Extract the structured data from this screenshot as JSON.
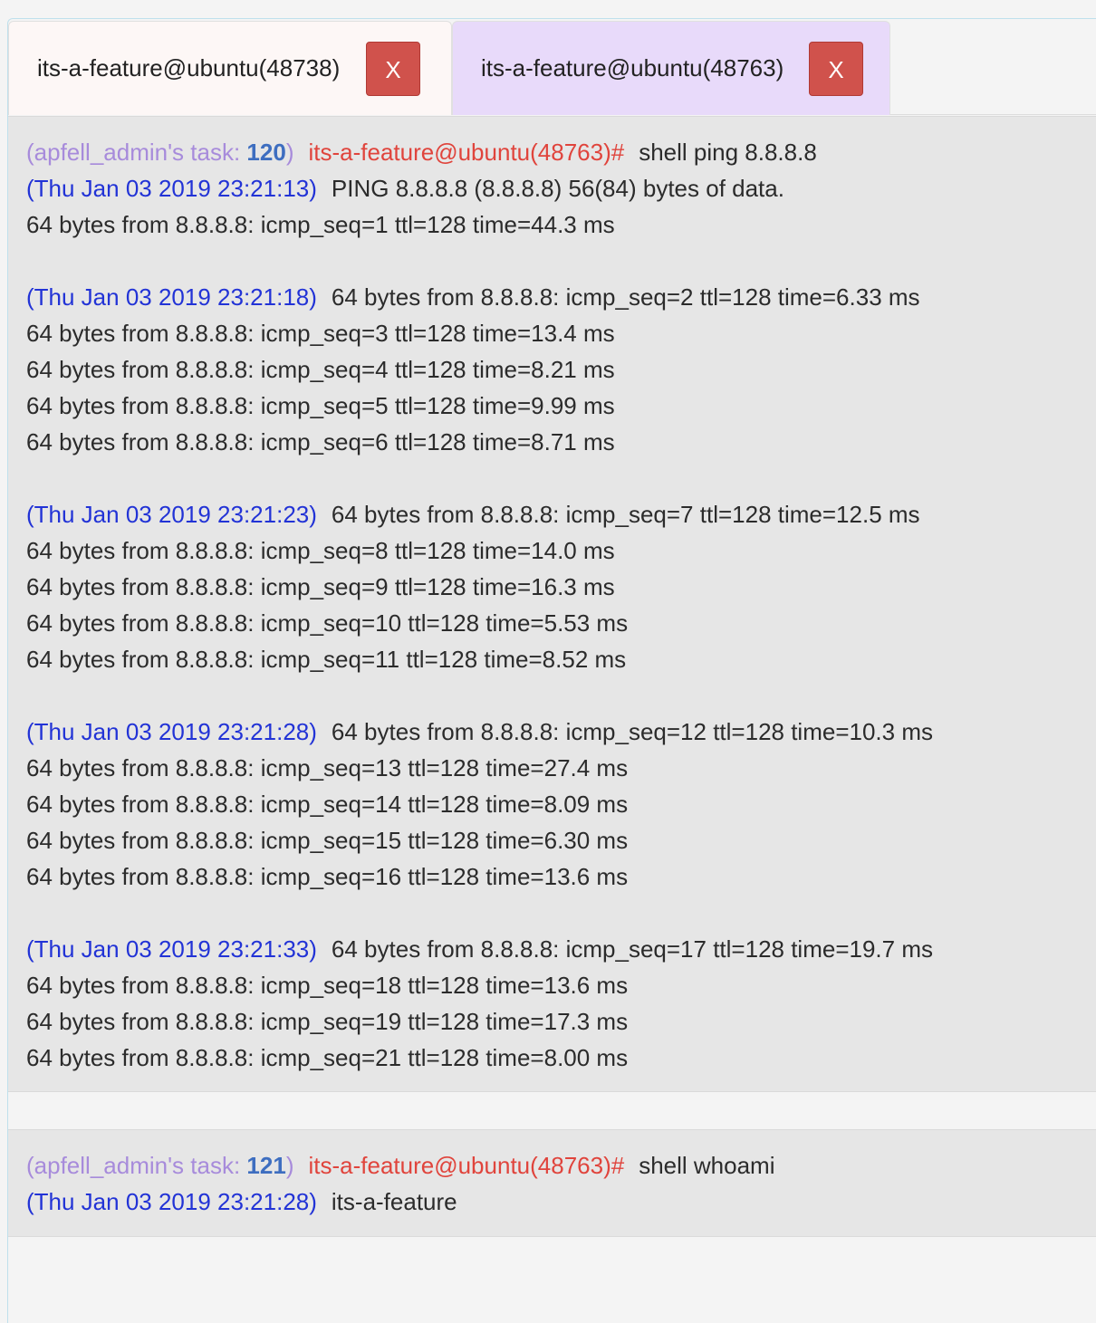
{
  "tabs": [
    {
      "label": "its-a-feature@ubuntu(48738)",
      "close_label": "X"
    },
    {
      "label": "its-a-feature@ubuntu(48763)",
      "close_label": "X"
    }
  ],
  "tasks": [
    {
      "task_prefix": "(apfell_admin's task: ",
      "task_id": "120",
      "task_suffix": ")",
      "host_prompt": "its-a-feature@ubuntu(48763)#",
      "command": "shell ping 8.8.8.8",
      "responses": [
        {
          "timestamp": "(Thu Jan 03 2019 23:21:13)",
          "first_line": "PING 8.8.8.8 (8.8.8.8) 56(84) bytes of data.",
          "lines": [
            "64 bytes from 8.8.8.8: icmp_seq=1 ttl=128 time=44.3 ms",
            ""
          ]
        },
        {
          "timestamp": "(Thu Jan 03 2019 23:21:18)",
          "first_line": "64 bytes from 8.8.8.8: icmp_seq=2 ttl=128 time=6.33 ms",
          "lines": [
            "64 bytes from 8.8.8.8: icmp_seq=3 ttl=128 time=13.4 ms",
            "64 bytes from 8.8.8.8: icmp_seq=4 ttl=128 time=8.21 ms",
            "64 bytes from 8.8.8.8: icmp_seq=5 ttl=128 time=9.99 ms",
            "64 bytes from 8.8.8.8: icmp_seq=6 ttl=128 time=8.71 ms",
            ""
          ]
        },
        {
          "timestamp": "(Thu Jan 03 2019 23:21:23)",
          "first_line": "64 bytes from 8.8.8.8: icmp_seq=7 ttl=128 time=12.5 ms",
          "lines": [
            "64 bytes from 8.8.8.8: icmp_seq=8 ttl=128 time=14.0 ms",
            "64 bytes from 8.8.8.8: icmp_seq=9 ttl=128 time=16.3 ms",
            "64 bytes from 8.8.8.8: icmp_seq=10 ttl=128 time=5.53 ms",
            "64 bytes from 8.8.8.8: icmp_seq=11 ttl=128 time=8.52 ms",
            ""
          ]
        },
        {
          "timestamp": "(Thu Jan 03 2019 23:21:28)",
          "first_line": "64 bytes from 8.8.8.8: icmp_seq=12 ttl=128 time=10.3 ms",
          "lines": [
            "64 bytes from 8.8.8.8: icmp_seq=13 ttl=128 time=27.4 ms",
            "64 bytes from 8.8.8.8: icmp_seq=14 ttl=128 time=8.09 ms",
            "64 bytes from 8.8.8.8: icmp_seq=15 ttl=128 time=6.30 ms",
            "64 bytes from 8.8.8.8: icmp_seq=16 ttl=128 time=13.6 ms",
            ""
          ]
        },
        {
          "timestamp": "(Thu Jan 03 2019 23:21:33)",
          "first_line": "64 bytes from 8.8.8.8: icmp_seq=17 ttl=128 time=19.7 ms",
          "lines": [
            "64 bytes from 8.8.8.8: icmp_seq=18 ttl=128 time=13.6 ms",
            "64 bytes from 8.8.8.8: icmp_seq=19 ttl=128 time=17.3 ms",
            "64 bytes from 8.8.8.8: icmp_seq=21 ttl=128 time=8.00 ms"
          ]
        }
      ]
    },
    {
      "task_prefix": "(apfell_admin's task: ",
      "task_id": "121",
      "task_suffix": ")",
      "host_prompt": "its-a-feature@ubuntu(48763)#",
      "command": "shell whoami",
      "responses": [
        {
          "timestamp": "(Thu Jan 03 2019 23:21:28)",
          "first_line": "its-a-feature",
          "lines": []
        }
      ]
    }
  ],
  "colors": {
    "task_label": "#a78bdb",
    "task_id": "#3e6ec0",
    "host_prompt": "#e0443c",
    "timestamp": "#2233d6",
    "close_button": "#d0524c",
    "active_tab": "#e8dafa"
  }
}
